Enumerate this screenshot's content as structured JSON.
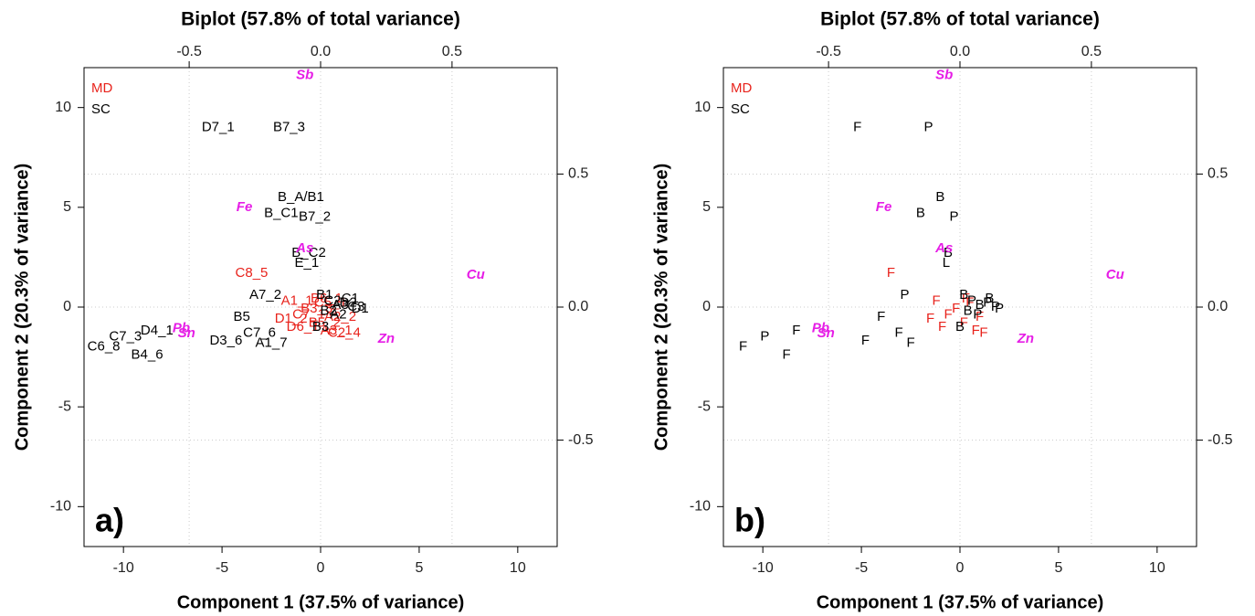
{
  "chart_data": [
    {
      "type": "biplot",
      "title": "Biplot (57.8% of total variance)",
      "panel_label": "a)",
      "xlabel": "Component 1 (37.5% of variance)",
      "ylabel": "Component 2 (20.3% of variance)",
      "xlim": [
        -12,
        12
      ],
      "ylim": [
        -12,
        12
      ],
      "xticks": [
        -10,
        -5,
        0,
        5,
        10
      ],
      "yticks": [
        -10,
        -5,
        0,
        5,
        10
      ],
      "x2lim": [
        -0.9,
        0.9
      ],
      "x2ticks": [
        -0.5,
        {
          "value": 0,
          "label": "0.0"
        },
        0.5
      ],
      "y2lim": [
        -0.9,
        0.9
      ],
      "y2ticks": [
        -0.5,
        {
          "value": 0,
          "label": "0.0"
        },
        0.5
      ],
      "grid": true,
      "series": [
        {
          "name": "MD",
          "color": "#e8231c",
          "labels": [
            "C8_5",
            "A1_1",
            "C7_1",
            "B5_2",
            "A3_1",
            "C2_4",
            "D1_2",
            "B3_3",
            "C5_1",
            "A2_2",
            "D6_1",
            "B6_1"
          ],
          "x": [
            -3.5,
            -1.2,
            -0.6,
            0.2,
            0.8,
            1.2,
            -1.5,
            -0.2,
            0.5,
            1.0,
            -0.9,
            0.3
          ],
          "values": [
            1.7,
            0.3,
            -0.4,
            -0.8,
            -1.2,
            -1.3,
            -0.6,
            -0.1,
            0.2,
            -0.5,
            -1.0,
            0.4
          ]
        },
        {
          "name": "SC",
          "color": "#000000",
          "labels": [
            "D7_1",
            "B7_3",
            "B_A/B1",
            "B_C1",
            "B7_2",
            "B_C2",
            "E_1",
            "A7_2",
            "C7_3",
            "D4_1",
            "C6_8",
            "B4_6",
            "D3_6",
            "A1_7",
            "C7_6",
            "B5",
            "B3",
            "C2",
            "A3",
            "D2",
            "C3",
            "B2",
            "A2",
            "C1",
            "D1",
            "B1"
          ],
          "x": [
            -5.2,
            -1.6,
            -1.0,
            -2.0,
            -0.3,
            -0.6,
            -0.7,
            -2.8,
            -9.9,
            -8.3,
            -11.0,
            -8.8,
            -4.8,
            -2.5,
            -3.1,
            -4.0,
            0.0,
            0.6,
            1.0,
            1.4,
            1.8,
            0.4,
            0.9,
            1.5,
            2.0,
            0.2
          ],
          "values": [
            9.0,
            9.0,
            5.5,
            4.7,
            4.5,
            2.7,
            2.2,
            0.6,
            -1.5,
            -1.2,
            -2.0,
            -2.4,
            -1.7,
            -1.8,
            -1.3,
            -0.5,
            -1.0,
            0.3,
            0.1,
            0.2,
            0.0,
            -0.2,
            -0.4,
            0.4,
            -0.1,
            0.6
          ]
        }
      ],
      "loadings": {
        "color": "#e61ee6",
        "labels": [
          "Sb",
          "Fe",
          "As",
          "Cu",
          "Pb",
          "Sn",
          "Zn"
        ],
        "x": [
          -0.06,
          -0.29,
          -0.06,
          0.59,
          -0.53,
          -0.51,
          0.25
        ],
        "values": [
          0.87,
          0.375,
          0.22,
          0.12,
          -0.08,
          -0.1,
          -0.12
        ]
      }
    },
    {
      "type": "biplot",
      "title": "Biplot (57.8% of total variance)",
      "panel_label": "b)",
      "xlabel": "Component 1 (37.5% of variance)",
      "ylabel": "Component 2 (20.3% of variance)",
      "xlim": [
        -12,
        12
      ],
      "ylim": [
        -12,
        12
      ],
      "xticks": [
        -10,
        -5,
        0,
        5,
        10
      ],
      "yticks": [
        -10,
        -5,
        0,
        5,
        10
      ],
      "x2lim": [
        -0.9,
        0.9
      ],
      "x2ticks": [
        -0.5,
        {
          "value": 0,
          "label": "0.0"
        },
        0.5
      ],
      "y2lim": [
        -0.9,
        0.9
      ],
      "y2ticks": [
        -0.5,
        {
          "value": 0,
          "label": "0.0"
        },
        0.5
      ],
      "grid": true,
      "series": [
        {
          "name": "MD",
          "color": "#e8231c",
          "labels": [
            "F",
            "F",
            "F",
            "F",
            "F",
            "F",
            "F",
            "F",
            "F",
            "F",
            "F",
            "F"
          ],
          "x": [
            -3.5,
            -1.2,
            -0.6,
            0.2,
            0.8,
            1.2,
            -1.5,
            -0.2,
            0.5,
            1.0,
            -0.9,
            0.3
          ],
          "values": [
            1.7,
            0.3,
            -0.4,
            -0.8,
            -1.2,
            -1.3,
            -0.6,
            -0.1,
            0.2,
            -0.5,
            -1.0,
            0.4
          ]
        },
        {
          "name": "SC",
          "color": "#000000",
          "labels": [
            "F",
            "P",
            "B",
            "B",
            "P",
            "B",
            "L",
            "P",
            "P",
            "F",
            "F",
            "F",
            "F",
            "F",
            "F",
            "F",
            "B",
            "P",
            "B",
            "P",
            "P",
            "B",
            "P",
            "B",
            "P",
            "B"
          ],
          "x": [
            -5.2,
            -1.6,
            -1.0,
            -2.0,
            -0.3,
            -0.6,
            -0.7,
            -2.8,
            -9.9,
            -8.3,
            -11.0,
            -8.8,
            -4.8,
            -2.5,
            -3.1,
            -4.0,
            0.0,
            0.6,
            1.0,
            1.4,
            1.8,
            0.4,
            0.9,
            1.5,
            2.0,
            0.2
          ],
          "values": [
            9.0,
            9.0,
            5.5,
            4.7,
            4.5,
            2.7,
            2.2,
            0.6,
            -1.5,
            -1.2,
            -2.0,
            -2.4,
            -1.7,
            -1.8,
            -1.3,
            -0.5,
            -1.0,
            0.3,
            0.1,
            0.2,
            0.0,
            -0.2,
            -0.4,
            0.4,
            -0.1,
            0.6
          ]
        }
      ],
      "loadings": {
        "color": "#e61ee6",
        "labels": [
          "Sb",
          "Fe",
          "As",
          "Cu",
          "Pb",
          "Sn",
          "Zn"
        ],
        "x": [
          -0.06,
          -0.29,
          -0.06,
          0.59,
          -0.53,
          -0.51,
          0.25
        ],
        "values": [
          0.87,
          0.375,
          0.22,
          0.12,
          -0.08,
          -0.1,
          -0.12
        ]
      }
    }
  ]
}
